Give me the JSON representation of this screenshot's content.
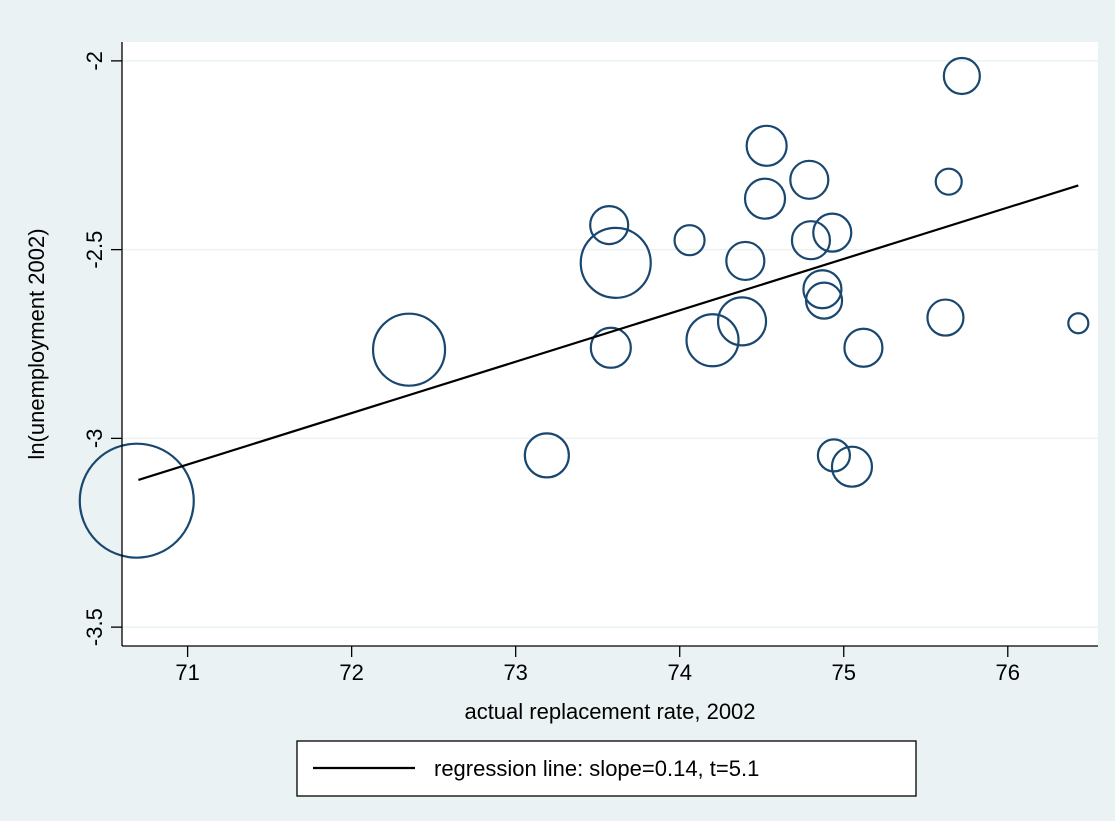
{
  "colors": {
    "outer_background": "#EAF2F3",
    "plot_background": "#FFFFFF",
    "gridline": "#EAF2F3",
    "marker_outline": "#1A476F",
    "regression_line": "#000000"
  },
  "chart_data": {
    "type": "scatter",
    "marker_style": "hollow circles, size weighted",
    "xlabel": "actual replacement rate, 2002",
    "ylabel": "ln(unemployment 2002)",
    "xlim": [
      70.6,
      76.55
    ],
    "ylim": [
      -3.55,
      -1.95
    ],
    "x_ticks": [
      71,
      72,
      73,
      74,
      75,
      76
    ],
    "y_ticks": [
      -3.5,
      -3,
      -2.5,
      -2
    ],
    "x_tick_labels": [
      "71",
      "72",
      "73",
      "74",
      "75",
      "76"
    ],
    "y_tick_labels": [
      "-3.5",
      "-3",
      "-2.5",
      "-2"
    ],
    "grid": "horizontal",
    "legend_position": "bottom",
    "series": [
      {
        "kind": "scatter",
        "points": [
          {
            "x": 70.69,
            "y": -3.165,
            "weight": 57
          },
          {
            "x": 72.35,
            "y": -2.765,
            "weight": 36
          },
          {
            "x": 73.19,
            "y": -3.045,
            "weight": 22
          },
          {
            "x": 73.57,
            "y": -2.435,
            "weight": 19
          },
          {
            "x": 73.61,
            "y": -2.535,
            "weight": 35
          },
          {
            "x": 73.58,
            "y": -2.76,
            "weight": 20
          },
          {
            "x": 74.06,
            "y": -2.475,
            "weight": 15
          },
          {
            "x": 74.2,
            "y": -2.74,
            "weight": 26
          },
          {
            "x": 74.38,
            "y": -2.69,
            "weight": 24
          },
          {
            "x": 74.4,
            "y": -2.53,
            "weight": 19
          },
          {
            "x": 74.53,
            "y": -2.225,
            "weight": 20
          },
          {
            "x": 74.52,
            "y": -2.365,
            "weight": 20
          },
          {
            "x": 74.79,
            "y": -2.315,
            "weight": 19
          },
          {
            "x": 74.8,
            "y": -2.475,
            "weight": 19
          },
          {
            "x": 74.93,
            "y": -2.455,
            "weight": 19
          },
          {
            "x": 74.87,
            "y": -2.605,
            "weight": 19
          },
          {
            "x": 74.88,
            "y": -2.635,
            "weight": 18
          },
          {
            "x": 74.94,
            "y": -3.045,
            "weight": 16
          },
          {
            "x": 75.05,
            "y": -3.075,
            "weight": 20
          },
          {
            "x": 75.12,
            "y": -2.76,
            "weight": 19
          },
          {
            "x": 75.62,
            "y": -2.68,
            "weight": 18
          },
          {
            "x": 75.64,
            "y": -2.32,
            "weight": 13
          },
          {
            "x": 75.72,
            "y": -2.04,
            "weight": 18
          },
          {
            "x": 76.43,
            "y": -2.695,
            "weight": 10
          }
        ]
      },
      {
        "kind": "line",
        "name": "regression line: slope=0.14, t=5.1",
        "points": [
          {
            "x": 70.7,
            "y": -3.11
          },
          {
            "x": 76.43,
            "y": -2.33
          }
        ]
      }
    ],
    "legend": [
      "regression line: slope=0.14, t=5.1"
    ]
  }
}
